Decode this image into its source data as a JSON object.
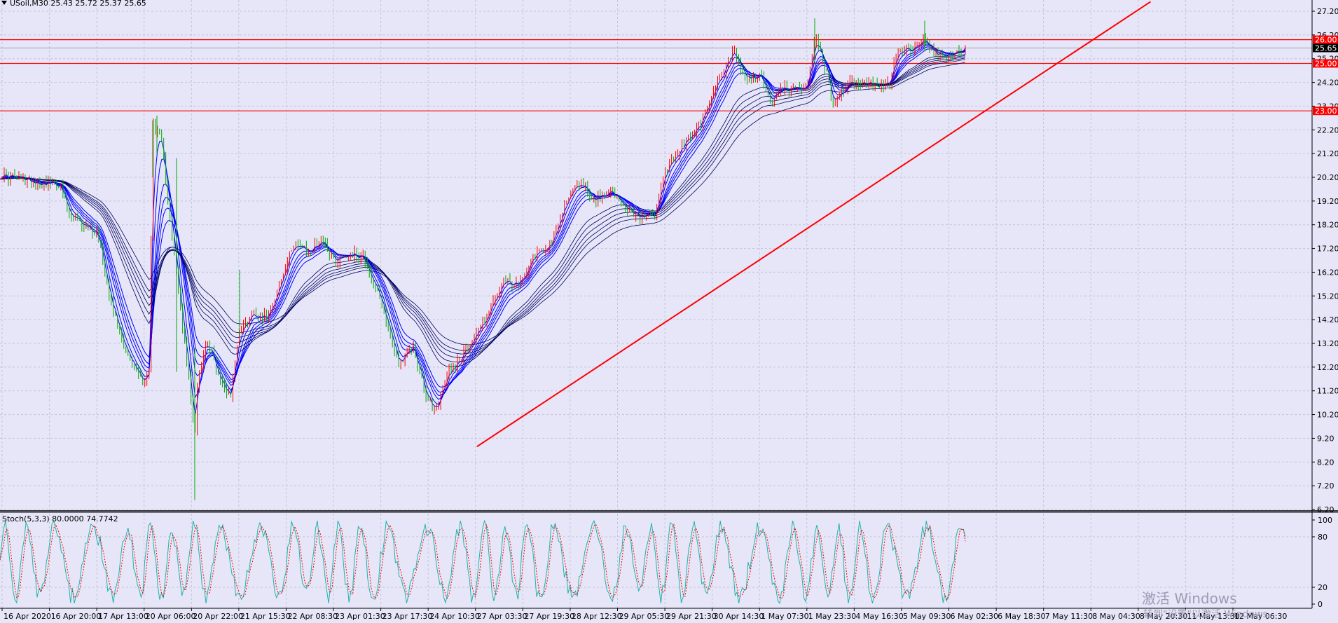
{
  "title": "USoil,M30  25.43 25.72 25.37 25.65",
  "stoch_title": "Stoch(5,3,3) 80.0000 74.7742",
  "watermark": {
    "line1": "激活 Windows",
    "line2": "转到\"设置\"以激活 Windows。"
  },
  "colors": {
    "background": "#e6e6f8",
    "grid": "#c4c4d8",
    "price_line": "#ff0000",
    "bull": "#ff0000",
    "bear": "#00aa00",
    "ribbon_fast": "#0000ff",
    "ribbon_slow": "#000060",
    "stoch_main": "#20b2aa",
    "stoch_signal": "#ff0000",
    "trend_line": "#ff0000"
  },
  "chart_data": [
    {
      "type": "candlestick",
      "symbol": "USoil",
      "timeframe": "M30",
      "ohlc_current": {
        "open": 25.43,
        "high": 25.72,
        "low": 25.37,
        "close": 25.65
      },
      "current_price_label": "25.65",
      "ylim": [
        6.2,
        27.2
      ],
      "y_ticks": [
        "27.20",
        "26.20",
        "25.20",
        "24.20",
        "23.20",
        "22.20",
        "21.20",
        "20.20",
        "19.20",
        "18.20",
        "17.20",
        "16.20",
        "15.20",
        "14.20",
        "13.20",
        "12.20",
        "11.20",
        "10.20",
        "9.20",
        "8.20",
        "7.20",
        "6.20"
      ],
      "x_ticks": [
        "16 Apr 2020",
        "16 Apr 20:00",
        "17 Apr 13:00",
        "20 Apr 06:00",
        "20 Apr 22:00",
        "21 Apr 15:30",
        "22 Apr 08:30",
        "23 Apr 01:30",
        "23 Apr 17:30",
        "24 Apr 10:30",
        "27 Apr 03:30",
        "27 Apr 19:30",
        "28 Apr 12:30",
        "29 Apr 05:30",
        "29 Apr 21:30",
        "30 Apr 14:30",
        "1 May 07:30",
        "1 May 23:30",
        "4 May 16:30",
        "5 May 09:30",
        "6 May 02:30",
        "6 May 18:30",
        "7 May 11:30",
        "8 May 04:30",
        "8 May 20:30",
        "11 May 13:30",
        "12 May 06:30"
      ],
      "horizontal_levels": [
        {
          "value": 26.0,
          "label": "26.00"
        },
        {
          "value": 25.0,
          "label": "25.00"
        },
        {
          "value": 23.0,
          "label": "23.00"
        }
      ],
      "trend_line": {
        "from": [
          "27 Apr 03:30",
          8.85
        ],
        "to": [
          "11 May 13:30",
          27.6
        ]
      },
      "price_path": [
        [
          0,
          20.3
        ],
        [
          55,
          20.0
        ],
        [
          85,
          19.9
        ],
        [
          100,
          18.5
        ],
        [
          120,
          18.2
        ],
        [
          140,
          17.8
        ],
        [
          160,
          14.7
        ],
        [
          185,
          12.5
        ],
        [
          205,
          11.6
        ],
        [
          213,
          12.0
        ],
        [
          218,
          22.5
        ],
        [
          230,
          21.8
        ],
        [
          245,
          18.0
        ],
        [
          262,
          13.5
        ],
        [
          272,
          11.2
        ],
        [
          278,
          9.0
        ],
        [
          282,
          11.8
        ],
        [
          296,
          13.4
        ],
        [
          315,
          11.5
        ],
        [
          330,
          11.0
        ],
        [
          340,
          13.6
        ],
        [
          360,
          14.5
        ],
        [
          380,
          14.3
        ],
        [
          400,
          15.7
        ],
        [
          420,
          17.5
        ],
        [
          440,
          17.0
        ],
        [
          460,
          17.6
        ],
        [
          478,
          16.7
        ],
        [
          500,
          17.0
        ],
        [
          520,
          16.8
        ],
        [
          545,
          14.8
        ],
        [
          570,
          12.3
        ],
        [
          590,
          13.1
        ],
        [
          607,
          11.0
        ],
        [
          622,
          10.3
        ],
        [
          640,
          12.0
        ],
        [
          660,
          12.7
        ],
        [
          690,
          14.1
        ],
        [
          720,
          15.8
        ],
        [
          740,
          15.6
        ],
        [
          760,
          16.9
        ],
        [
          790,
          17.5
        ],
        [
          810,
          19.4
        ],
        [
          830,
          20.0
        ],
        [
          850,
          19.2
        ],
        [
          870,
          19.7
        ],
        [
          890,
          18.9
        ],
        [
          910,
          18.5
        ],
        [
          935,
          18.5
        ],
        [
          950,
          20.5
        ],
        [
          975,
          21.5
        ],
        [
          1000,
          22.5
        ],
        [
          1025,
          24.3
        ],
        [
          1048,
          25.5
        ],
        [
          1065,
          24.3
        ],
        [
          1085,
          24.5
        ],
        [
          1100,
          23.4
        ],
        [
          1120,
          24.0
        ],
        [
          1150,
          23.8
        ],
        [
          1165,
          26.2
        ],
        [
          1180,
          24.6
        ],
        [
          1190,
          23.2
        ],
        [
          1210,
          24.2
        ],
        [
          1240,
          24.1
        ],
        [
          1270,
          24.1
        ],
        [
          1280,
          25.4
        ],
        [
          1300,
          25.6
        ],
        [
          1320,
          26.0
        ],
        [
          1340,
          25.3
        ],
        [
          1378,
          25.65
        ]
      ],
      "x_span": [
        0,
        1378
      ]
    },
    {
      "type": "line",
      "name": "Stoch(5,3,3)",
      "main_value": 80.0,
      "signal_value": 74.7742,
      "ylim": [
        0,
        100
      ],
      "y_ticks": [
        "100",
        "80",
        "20",
        "0"
      ]
    }
  ]
}
